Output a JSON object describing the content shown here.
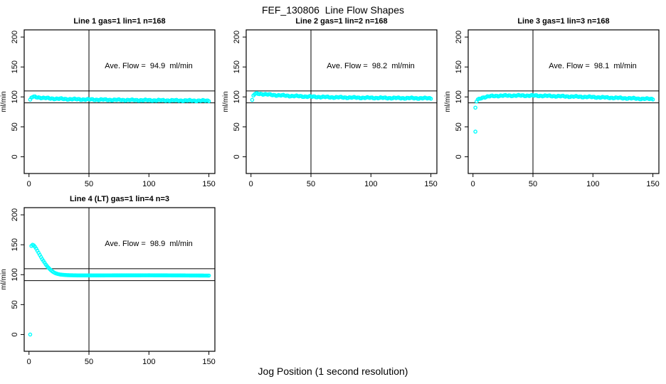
{
  "figure": {
    "title": "FEF_130806  Line Flow Shapes",
    "xlabel": "Jog Position (1 second resolution)",
    "background_color": "#ffffff",
    "point_color": "#00ffff",
    "line_color": "#000000",
    "text_color": "#000000"
  },
  "chart_data": {
    "type": "scatter",
    "title": "FEF_130806  Line Flow Shapes",
    "xlabel": "Jog Position (1 second resolution)",
    "axes": {
      "ylabel": "ml/min",
      "x_ticks": [
        0,
        50,
        100,
        150
      ],
      "y_ticks": [
        0,
        50,
        100,
        150,
        200
      ],
      "xlim": [
        -4,
        155
      ],
      "ylim": [
        -28,
        212
      ],
      "reference_lines_horizontal": [
        90,
        110
      ],
      "reference_lines_vertical": [
        50
      ],
      "grid": false
    },
    "panels": [
      {
        "title": "Line 1 gas=1 lin=1 n=168",
        "annotation": "Ave. Flow =  94.9  ml/min",
        "ave_flow_ml_min": 94.9,
        "n": 168,
        "dense": true,
        "outliers": [],
        "keypoints": [
          [
            1,
            94.5
          ],
          [
            2,
            98.5
          ],
          [
            3,
            99.8
          ],
          [
            5,
            100
          ],
          [
            8,
            99.2
          ],
          [
            12,
            98.2
          ],
          [
            20,
            97.2
          ],
          [
            30,
            96.5
          ],
          [
            45,
            95.8
          ],
          [
            60,
            95.3
          ],
          [
            80,
            94.8
          ],
          [
            100,
            94.4
          ],
          [
            120,
            94.1
          ],
          [
            150,
            93.6
          ]
        ]
      },
      {
        "title": "Line 2 gas=1 lin=2 n=168",
        "annotation": "Ave. Flow =  98.2  ml/min",
        "ave_flow_ml_min": 98.2,
        "n": 168,
        "dense": true,
        "outliers": [
          [
            1,
            95
          ]
        ],
        "keypoints": [
          [
            2,
            102
          ],
          [
            3,
            104.5
          ],
          [
            5,
            105.5
          ],
          [
            8,
            105.2
          ],
          [
            12,
            104.2
          ],
          [
            20,
            103
          ],
          [
            35,
            101.5
          ],
          [
            50,
            100.3
          ],
          [
            70,
            99.3
          ],
          [
            90,
            98.7
          ],
          [
            120,
            98.1
          ],
          [
            150,
            97.7
          ]
        ]
      },
      {
        "title": "Line 3 gas=1 lin=3 n=168",
        "annotation": "Ave. Flow =  98.1  ml/min",
        "ave_flow_ml_min": 98.1,
        "n": 168,
        "dense": true,
        "outliers": [
          [
            2,
            82
          ],
          [
            2,
            42
          ]
        ],
        "keypoints": [
          [
            3,
            92.5
          ],
          [
            4,
            95
          ],
          [
            6,
            97.5
          ],
          [
            9,
            99.5
          ],
          [
            14,
            101
          ],
          [
            20,
            101.8
          ],
          [
            30,
            102.2
          ],
          [
            50,
            102.2
          ],
          [
            65,
            101.5
          ],
          [
            80,
            100.7
          ],
          [
            95,
            100
          ],
          [
            110,
            99
          ],
          [
            125,
            98
          ],
          [
            140,
            97
          ],
          [
            150,
            96.5
          ]
        ]
      },
      {
        "title": "Line 4 (LT) gas=1 lin=4 n=3",
        "annotation": "Ave. Flow =  98.9  ml/min",
        "ave_flow_ml_min": 98.9,
        "n": 3,
        "dense": false,
        "outliers": [
          [
            1,
            0
          ]
        ],
        "keypoints": [
          [
            2,
            148
          ],
          [
            3,
            150
          ],
          [
            4,
            149
          ],
          [
            5,
            146.5
          ],
          [
            6,
            143.5
          ],
          [
            7,
            140
          ],
          [
            8,
            136.5
          ],
          [
            9,
            133
          ],
          [
            10,
            129.5
          ],
          [
            11,
            126
          ],
          [
            12,
            123
          ],
          [
            13,
            120
          ],
          [
            14,
            117
          ],
          [
            15,
            114.5
          ],
          [
            16,
            112
          ],
          [
            17,
            110
          ],
          [
            18,
            108
          ],
          [
            19,
            106.3
          ],
          [
            20,
            104.8
          ],
          [
            21,
            103.5
          ],
          [
            22,
            102.5
          ],
          [
            24,
            101.2
          ],
          [
            26,
            100.3
          ],
          [
            28,
            99.8
          ],
          [
            32,
            99.2
          ],
          [
            40,
            98.8
          ],
          [
            60,
            98.8
          ],
          [
            80,
            98.9
          ],
          [
            100,
            99
          ],
          [
            120,
            98.8
          ],
          [
            150,
            98.5
          ]
        ]
      }
    ]
  }
}
